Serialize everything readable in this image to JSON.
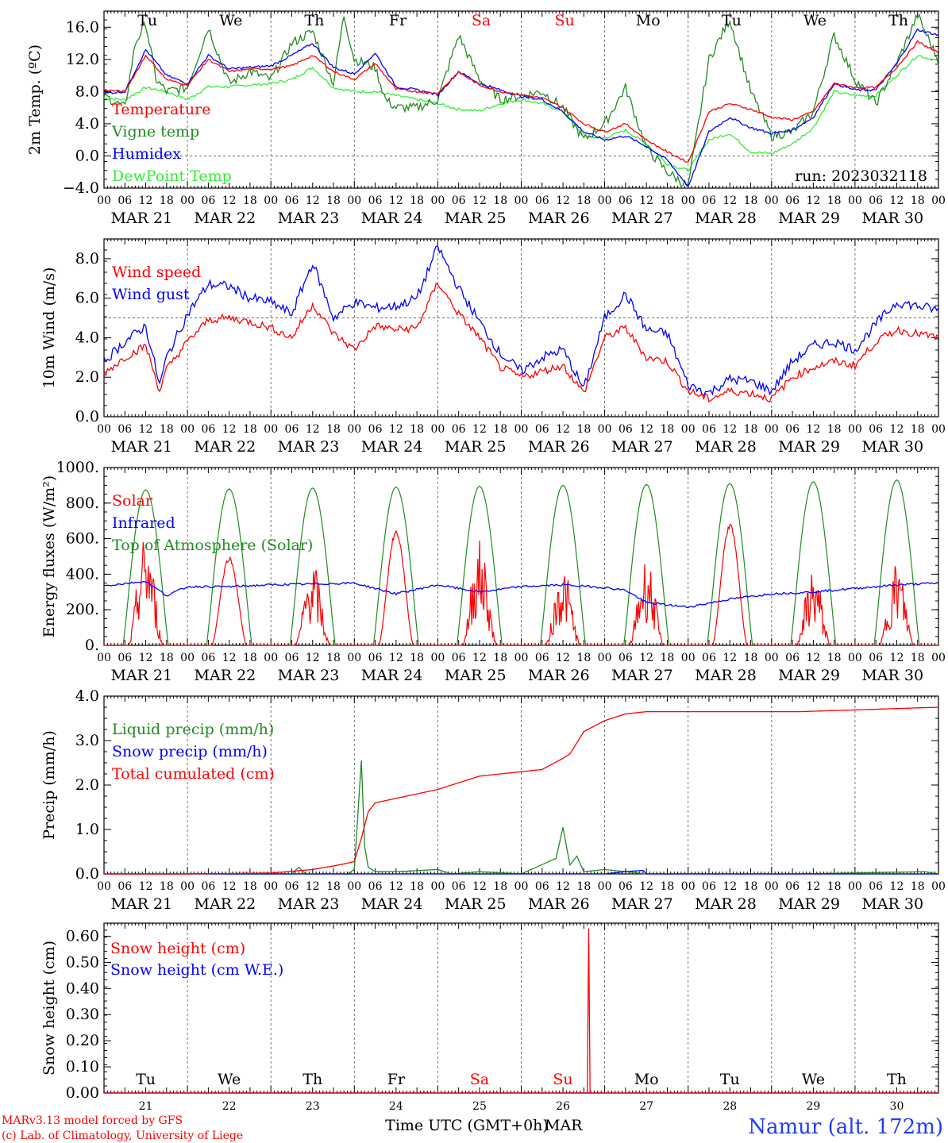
{
  "page": {
    "run_label": "run: 2023032118",
    "credits": [
      "MARv3.13 model forced by GFS",
      "(c) Lab. of Climatology, University of Liege"
    ],
    "station": "Namur (alt. 172m)",
    "xlabel": "Time UTC (GMT+0h)",
    "month": "MAR"
  },
  "colors": {
    "red": "#ff0000",
    "green": "#228b22",
    "blue": "#0000ff",
    "lime": "#33ee33",
    "station": "#1e3cff"
  },
  "chart_data": {
    "x_hour_ticks": [
      "00",
      "06",
      "12",
      "18"
    ],
    "dates": [
      "MAR 21",
      "MAR 22",
      "MAR 23",
      "MAR 24",
      "MAR 25",
      "MAR 26",
      "MAR 27",
      "MAR 28",
      "MAR 29",
      "MAR 30"
    ],
    "day_numbers": [
      "21",
      "22",
      "23",
      "24",
      "25",
      "26",
      "27",
      "28",
      "29",
      "30"
    ],
    "weekdays": [
      "Tu",
      "We",
      "Th",
      "Fr",
      "Sa",
      "Su",
      "Mo",
      "Tu",
      "We",
      "Th"
    ],
    "weekend_days": [
      4,
      5
    ],
    "panels": [
      {
        "type": "line",
        "ylabel": "2m Temp. (ºC)",
        "ylim": [
          -4,
          18
        ],
        "yticks": [
          -4,
          0,
          4,
          8,
          12,
          16
        ],
        "ytick_labels": [
          "−4.0",
          "0.0",
          "4.0",
          "8.0",
          "12.0",
          "16.0"
        ],
        "ref_line": 0,
        "series": [
          {
            "name": "Temperature",
            "color": "#ff0000",
            "x": [
              0,
              6,
              12,
              18,
              24,
              30,
              36,
              42,
              48,
              54,
              60,
              66,
              72,
              78,
              84,
              90,
              96,
              102,
              108,
              114,
              120,
              126,
              132,
              138,
              144,
              150,
              156,
              162,
              168,
              174,
              180,
              186,
              192,
              198,
              204,
              210,
              216,
              222,
              228,
              234,
              240
            ],
            "y": [
              8.2,
              8.0,
              12.5,
              9.5,
              8.8,
              12.0,
              10.5,
              10.8,
              10.8,
              11.2,
              12.5,
              10.5,
              9.5,
              11.5,
              8.3,
              8.0,
              7.8,
              10.4,
              8.8,
              8.0,
              7.6,
              7.2,
              6.0,
              4.0,
              3.0,
              4.0,
              2.0,
              0.5,
              -0.8,
              5.5,
              6.5,
              5.8,
              4.8,
              4.5,
              5.5,
              9.0,
              8.5,
              8.5,
              11.0,
              14.2,
              12.8
            ]
          },
          {
            "name": "Vigne temp",
            "color": "#228b22",
            "x": [
              0,
              6,
              9,
              12,
              15,
              18,
              24,
              30,
              36,
              42,
              48,
              54,
              60,
              66,
              69,
              72,
              78,
              81,
              84,
              90,
              96,
              102,
              108,
              114,
              120,
              126,
              132,
              138,
              144,
              150,
              156,
              162,
              168,
              174,
              180,
              186,
              192,
              198,
              204,
              210,
              216,
              222,
              228,
              234,
              240
            ],
            "y": [
              7.5,
              6.0,
              14.0,
              16.5,
              9.5,
              8.0,
              8.5,
              16.0,
              9.0,
              10.5,
              9.5,
              14.0,
              15.5,
              9.0,
              17.5,
              12.0,
              11.0,
              7.0,
              6.0,
              6.0,
              7.0,
              15.0,
              9.5,
              7.0,
              7.5,
              8.0,
              6.0,
              2.0,
              4.0,
              8.5,
              1.0,
              -2.0,
              -3.8,
              12.0,
              17.0,
              8.0,
              2.5,
              3.0,
              5.5,
              15.0,
              9.5,
              6.5,
              11.5,
              17.5,
              11.8
            ]
          },
          {
            "name": "Humidex",
            "color": "#0000ff",
            "x": [
              0,
              6,
              12,
              18,
              24,
              30,
              36,
              42,
              48,
              54,
              60,
              66,
              72,
              78,
              84,
              90,
              96,
              102,
              108,
              114,
              120,
              126,
              132,
              138,
              144,
              150,
              156,
              162,
              168,
              174,
              180,
              186,
              192,
              198,
              204,
              210,
              216,
              222,
              228,
              234,
              240
            ],
            "y": [
              7.8,
              8.0,
              13.2,
              10.0,
              9.0,
              12.5,
              10.8,
              11.0,
              11.2,
              12.5,
              14.0,
              11.0,
              10.2,
              12.8,
              8.6,
              8.2,
              7.6,
              10.5,
              9.0,
              8.2,
              7.4,
              7.0,
              5.5,
              3.0,
              2.0,
              2.5,
              1.2,
              -0.5,
              -3.8,
              3.0,
              4.8,
              3.5,
              2.8,
              3.2,
              4.8,
              9.0,
              8.2,
              8.2,
              11.5,
              15.7,
              15.0
            ]
          },
          {
            "name": "DewPoint Temp",
            "color": "#33ee33",
            "x": [
              0,
              6,
              12,
              18,
              24,
              30,
              36,
              42,
              48,
              54,
              60,
              66,
              72,
              78,
              84,
              90,
              96,
              102,
              108,
              114,
              120,
              126,
              132,
              138,
              144,
              150,
              156,
              162,
              168,
              174,
              180,
              186,
              192,
              198,
              204,
              210,
              216,
              222,
              228,
              234,
              240
            ],
            "y": [
              7.2,
              7.0,
              8.5,
              8.0,
              7.0,
              8.6,
              8.6,
              8.8,
              9.0,
              9.5,
              11.0,
              8.5,
              8.0,
              8.0,
              7.5,
              7.0,
              6.5,
              5.8,
              5.6,
              6.5,
              7.0,
              6.5,
              5.5,
              2.5,
              2.2,
              3.2,
              1.5,
              -1.0,
              -1.8,
              2.0,
              2.8,
              0.5,
              0.3,
              1.5,
              3.5,
              8.0,
              7.5,
              7.5,
              10.0,
              12.5,
              11.8
            ]
          }
        ],
        "legend": [
          "Temperature",
          "Vigne temp",
          "Humidex",
          "DewPoint Temp"
        ]
      },
      {
        "type": "line",
        "ylabel": "10m Wind (m/s)",
        "ylim": [
          0,
          9
        ],
        "yticks": [
          0,
          2,
          4,
          6,
          8
        ],
        "ytick_labels": [
          "0.0",
          "2.0",
          "4.0",
          "6.0",
          "8.0"
        ],
        "ref_line": 5,
        "series": [
          {
            "name": "Wind speed",
            "color": "#ff0000",
            "x": [
              0,
              6,
              12,
              16,
              18,
              24,
              30,
              36,
              42,
              48,
              54,
              60,
              66,
              72,
              78,
              84,
              90,
              96,
              102,
              108,
              114,
              120,
              126,
              132,
              138,
              144,
              150,
              156,
              162,
              168,
              174,
              180,
              186,
              192,
              198,
              204,
              210,
              216,
              222,
              228,
              234,
              240
            ],
            "y": [
              2.2,
              3.0,
              3.6,
              1.3,
              2.4,
              3.8,
              4.9,
              5.0,
              4.8,
              4.5,
              4.0,
              5.7,
              4.2,
              3.4,
              4.6,
              4.4,
              4.5,
              6.8,
              5.2,
              4.0,
              2.5,
              2.0,
              2.3,
              2.6,
              1.2,
              4.0,
              4.5,
              3.0,
              2.8,
              1.3,
              0.9,
              1.3,
              1.2,
              0.9,
              2.0,
              2.5,
              2.8,
              2.6,
              3.8,
              4.4,
              4.2,
              4.0
            ]
          },
          {
            "name": "Wind gust",
            "color": "#0000ff",
            "x": [
              0,
              6,
              12,
              16,
              18,
              24,
              30,
              36,
              42,
              48,
              54,
              60,
              66,
              72,
              78,
              84,
              90,
              96,
              102,
              108,
              114,
              120,
              126,
              132,
              138,
              144,
              150,
              156,
              162,
              168,
              174,
              180,
              186,
              192,
              198,
              204,
              210,
              216,
              222,
              228,
              234,
              240
            ],
            "y": [
              2.8,
              3.8,
              4.6,
              1.6,
              3.0,
              5.2,
              6.7,
              6.6,
              6.0,
              5.8,
              5.2,
              7.8,
              5.0,
              5.8,
              5.5,
              5.6,
              6.0,
              8.6,
              6.5,
              4.8,
              3.2,
              2.3,
              3.0,
              3.4,
              1.4,
              5.0,
              6.2,
              4.4,
              4.2,
              1.6,
              1.2,
              1.9,
              1.8,
              1.3,
              2.8,
              3.6,
              3.8,
              3.4,
              4.7,
              5.8,
              5.6,
              5.4
            ]
          }
        ],
        "legend": [
          "Wind speed",
          "Wind gust"
        ]
      },
      {
        "type": "line",
        "ylabel": "Energy fluxes (W/m²)",
        "ylim": [
          0,
          1000
        ],
        "yticks": [
          0,
          200,
          400,
          600,
          800,
          1000
        ],
        "ytick_labels": [
          "0.",
          "200.",
          "400.",
          "600.",
          "800.",
          "1000."
        ],
        "ref_line": null,
        "toa_peaks": [
          875,
          880,
          885,
          890,
          895,
          900,
          905,
          910,
          920,
          930
        ],
        "solar_peaks": [
          630,
          500,
          470,
          650,
          600,
          450,
          500,
          690,
          430,
          480
        ],
        "series": [
          {
            "name": "Solar",
            "color": "#ff0000"
          },
          {
            "name": "Infrared",
            "color": "#0000ff",
            "x": [
              0,
              12,
              18,
              24,
              36,
              48,
              60,
              72,
              84,
              96,
              108,
              120,
              132,
              144,
              150,
              156,
              168,
              180,
              192,
              204,
              216,
              228,
              240
            ],
            "y": [
              335,
              360,
              280,
              330,
              330,
              340,
              345,
              350,
              290,
              340,
              300,
              330,
              340,
              325,
              310,
              240,
              215,
              260,
              290,
              300,
              320,
              340,
              350
            ]
          },
          {
            "name": "Top of Atmosphere (Solar)",
            "color": "#228b22"
          }
        ],
        "legend": [
          "Solar",
          "Infrared",
          "Top of Atmosphere (Solar)"
        ]
      },
      {
        "type": "line",
        "ylabel": "Precip (mm/h)",
        "ylim": [
          0,
          4
        ],
        "yticks": [
          0,
          1,
          2,
          3,
          4
        ],
        "ytick_labels": [
          "0.0",
          "1.0",
          "2.0",
          "3.0",
          "4.0"
        ],
        "ref_line": null,
        "series": [
          {
            "name": "Liquid precip (mm/h)",
            "color": "#228b22",
            "x": [
              0,
              54,
              56,
              58,
              70,
              72,
              74,
              75,
              76,
              78,
              84,
              96,
              100,
              108,
              120,
              130,
              132,
              134,
              136,
              138,
              144,
              156,
              168,
              200,
              236,
              240
            ],
            "y": [
              0,
              0,
              0.15,
              0,
              0,
              0.1,
              2.55,
              0.6,
              0.15,
              0.05,
              0.05,
              0.1,
              0,
              0.05,
              0,
              0.35,
              1.05,
              0.2,
              0.4,
              0.05,
              0.1,
              0,
              0,
              0,
              0.05,
              0
            ]
          },
          {
            "name": "Snow precip (mm/h)",
            "color": "#0000ff",
            "x": [
              0,
              144,
              150,
              155,
              156,
              240
            ],
            "y": [
              0,
              0,
              0.05,
              0.08,
              0,
              0
            ]
          },
          {
            "name": "Total cumulated (cm)",
            "color": "#ff0000",
            "x": [
              0,
              24,
              48,
              54,
              60,
              66,
              70,
              72,
              74,
              76,
              78,
              84,
              96,
              108,
              120,
              126,
              132,
              134,
              138,
              144,
              150,
              156,
              168,
              200,
              240
            ],
            "y": [
              0,
              0,
              0.02,
              0.06,
              0.1,
              0.18,
              0.24,
              0.28,
              0.8,
              1.4,
              1.6,
              1.7,
              1.9,
              2.2,
              2.3,
              2.35,
              2.6,
              2.7,
              3.2,
              3.45,
              3.6,
              3.65,
              3.65,
              3.65,
              3.75
            ]
          }
        ],
        "legend": [
          "Liquid precip (mm/h)",
          "Snow precip (mm/h)",
          "Total cumulated (cm)"
        ]
      },
      {
        "type": "line",
        "ylabel": "Snow height (cm)",
        "ylim": [
          0,
          0.65
        ],
        "yticks": [
          0,
          0.1,
          0.2,
          0.3,
          0.4,
          0.5,
          0.6
        ],
        "ytick_labels": [
          "0.00",
          "0.10",
          "0.20",
          "0.30",
          "0.40",
          "0.50",
          "0.60"
        ],
        "ref_line": null,
        "series": [
          {
            "name": "Snow height (cm)",
            "color": "#ff0000",
            "x": [
              0,
              139,
              139.4,
              139.8,
              240
            ],
            "y": [
              0,
              0,
              0.63,
              0,
              0
            ]
          },
          {
            "name": "Snow height (cm W.E.)",
            "color": "#0000ff",
            "x": [
              0,
              240
            ],
            "y": [
              0,
              0
            ]
          }
        ],
        "legend": [
          "Snow height (cm)",
          "Snow height (cm W.E.)"
        ]
      }
    ]
  }
}
